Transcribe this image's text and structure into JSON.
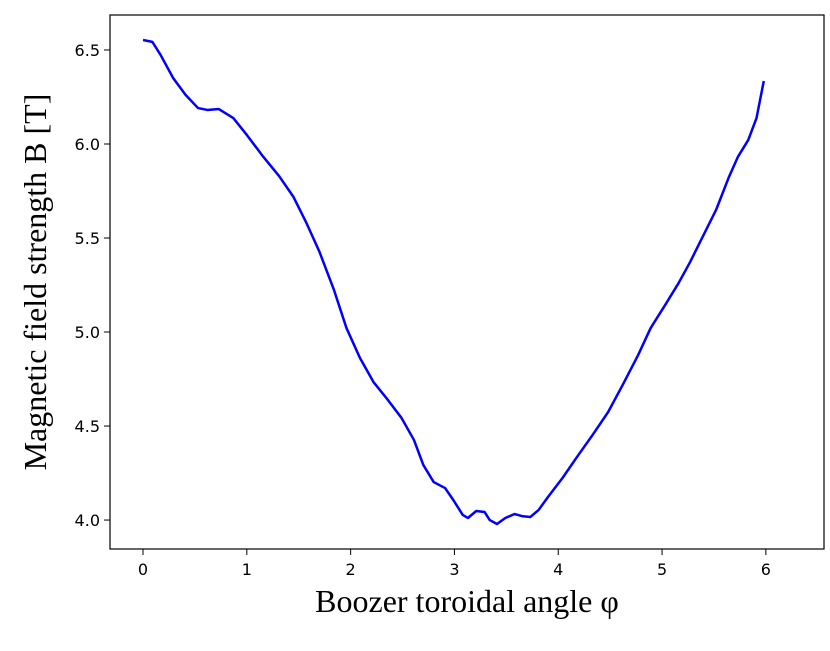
{
  "chart_data": {
    "type": "line",
    "x_label": "Boozer toroidal angle φ",
    "y_label": "Magnetic field strength B [T]",
    "x": [
      0,
      0.09,
      0.17,
      0.29,
      0.41,
      0.53,
      0.62,
      0.73,
      0.87,
      1.0,
      1.16,
      1.31,
      1.45,
      1.57,
      1.7,
      1.84,
      1.96,
      2.09,
      2.22,
      2.36,
      2.49,
      2.61,
      2.7,
      2.8,
      2.91,
      2.99,
      3.08,
      3.13,
      3.21,
      3.29,
      3.34,
      3.41,
      3.49,
      3.58,
      3.65,
      3.73,
      3.81,
      3.9,
      4.04,
      4.18,
      4.33,
      4.48,
      4.62,
      4.77,
      4.89,
      5.03,
      5.16,
      5.27,
      5.4,
      5.52,
      5.64,
      5.73,
      5.83,
      5.91,
      5.98
    ],
    "series": [
      {
        "name": "B",
        "color": "#0000ff",
        "values": [
          6.553,
          6.543,
          6.473,
          6.351,
          6.261,
          6.191,
          6.181,
          6.186,
          6.138,
          6.048,
          5.931,
          5.83,
          5.718,
          5.585,
          5.426,
          5.223,
          5.021,
          4.862,
          4.734,
          4.638,
          4.543,
          4.426,
          4.293,
          4.202,
          4.17,
          4.106,
          4.027,
          4.011,
          4.048,
          4.043,
          4.0,
          3.979,
          4.011,
          4.032,
          4.021,
          4.016,
          4.053,
          4.122,
          4.223,
          4.335,
          4.452,
          4.574,
          4.718,
          4.878,
          5.021,
          5.144,
          5.261,
          5.372,
          5.516,
          5.649,
          5.819,
          5.931,
          6.021,
          6.138,
          6.335
        ]
      }
    ],
    "xlim": [
      -0.318,
      6.56
    ],
    "xticks": [
      0,
      1,
      2,
      3,
      4,
      5,
      6
    ],
    "ylim": [
      3.846,
      6.686
    ],
    "yticks": [
      {
        "value": 4,
        "label": "4.0"
      },
      4.5,
      {
        "value": 5,
        "label": "5.0"
      },
      5.5,
      {
        "value": 6,
        "label": "6.0"
      },
      6.5
    ],
    "grid": false
  }
}
